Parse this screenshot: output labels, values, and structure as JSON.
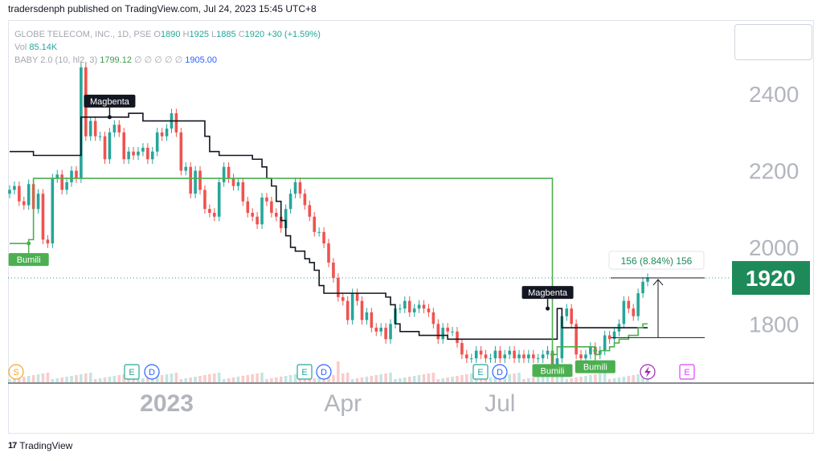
{
  "header": {
    "publisher": "tradersdenph published on TradingView.com, Jul 24, 2023 15:45 UTC+8"
  },
  "legend": {
    "symbol": "GLOBE TELECOM, INC., 1D, PSE",
    "o_label": "O",
    "o_value": "1890",
    "h_label": "H",
    "h_value": "1925",
    "l_label": "L",
    "l_value": "1885",
    "c_label": "C",
    "c_value": "1920",
    "change": "+30 (+1.59%)",
    "vol_label": "Vol",
    "vol_value": "85.14K",
    "indicator_label": "BABY 2.0 (10, hl2, 3)",
    "indicator_value1": "1799.12",
    "indicator_placeholders": "∅ ∅ ∅ ∅ ∅",
    "indicator_value2": "1905.00"
  },
  "footer": {
    "brand": "TradingView"
  },
  "colors": {
    "up": "#26a69a",
    "down": "#ef5350",
    "line": "#131722",
    "green": "#4caf50",
    "price_badge": "#1e8a5a"
  },
  "chart_data": {
    "type": "line",
    "title": "GLOBE TELECOM, INC., 1D, PSE",
    "yticks": [
      1800,
      2000,
      2200,
      2400
    ],
    "ylim": [
      1660,
      2520
    ],
    "xticks": [
      "2023",
      "Apr",
      "Jul"
    ],
    "last_price": "1920",
    "range_label": "156 (8.84%) 156",
    "grid": false,
    "series": [
      {
        "name": "close",
        "values": [
          2150,
          2160,
          2120,
          2110,
          2165,
          2100,
          2140,
          2020,
          2010,
          2180,
          2190,
          2150,
          2170,
          2200,
          2180,
          2470,
          2290,
          2330,
          2290,
          2290,
          2230,
          2300,
          2320,
          2300,
          2230,
          2250,
          2240,
          2250,
          2260,
          2230,
          2250,
          2300,
          2290,
          2310,
          2350,
          2300,
          2200,
          2210,
          2140,
          2200,
          2150,
          2100,
          2090,
          2080,
          2170,
          2210,
          2180,
          2160,
          2170,
          2120,
          2090,
          2080,
          2060,
          2130,
          2120,
          2090,
          2080,
          2050,
          2100,
          2140,
          2170,
          2140,
          2110,
          2080,
          2040,
          2040,
          2010,
          1960,
          1920,
          1870,
          1860,
          1810,
          1880,
          1860,
          1810,
          1830,
          1790,
          1780,
          1790,
          1760,
          1800,
          1840,
          1840,
          1860,
          1830,
          1840,
          1850,
          1840,
          1830,
          1800,
          1760,
          1790,
          1780,
          1780,
          1750,
          1720,
          1710,
          1710,
          1730,
          1720,
          1710,
          1710,
          1730,
          1710,
          1720,
          1730,
          1710,
          1720,
          1710,
          1720,
          1710,
          1710,
          1720,
          1730,
          1690,
          1710,
          1820,
          1840,
          1800,
          1720,
          1710,
          1720,
          1740,
          1720,
          1730,
          1770,
          1760,
          1780,
          1800,
          1860,
          1840,
          1820,
          1880,
          1910,
          1920
        ]
      },
      {
        "name": "magbenta",
        "values": [
          2250,
          2250,
          2250,
          2250,
          2250,
          2240,
          2240,
          2240,
          2240,
          2240,
          2240,
          2240,
          2240,
          2240,
          2240,
          2340,
          2340,
          2340,
          2340,
          2340,
          2340,
          2340,
          2340,
          2340,
          2340,
          2350,
          2350,
          2350,
          2330,
          2330,
          2330,
          2330,
          2330,
          2330,
          2330,
          2330,
          2330,
          2330,
          2330,
          2330,
          2330,
          2290,
          2250,
          2250,
          2240,
          2240,
          2240,
          2240,
          2240,
          2240,
          2240,
          2230,
          2230,
          2210,
          2180,
          2160,
          2120,
          2070,
          2030,
          2000,
          1990,
          1990,
          1970,
          1960,
          1940,
          1900,
          1880,
          1880,
          1880,
          1880,
          1880,
          1880,
          1880,
          1880,
          1880,
          1880,
          1880,
          1880,
          1880,
          1870,
          1850,
          1800,
          1780,
          1780,
          1780,
          1780,
          1770,
          1770,
          1770,
          1770,
          1770,
          1770,
          1760,
          1760,
          1760,
          1760,
          1760,
          1760,
          1760,
          1760,
          1760,
          1760,
          1760,
          1760,
          1760,
          1760,
          1760,
          1760,
          1760,
          1760,
          1760,
          1760,
          1760,
          1760,
          1760,
          1840,
          1790,
          1790,
          1790,
          1790,
          1790,
          1790,
          1790,
          1790,
          1790,
          1790,
          1790,
          1790,
          1790,
          1790,
          1790,
          1790,
          1790,
          1790,
          1790
        ]
      },
      {
        "name": "bumili",
        "values": [
          2010,
          2010,
          2010,
          2010,
          2020,
          2180,
          2180,
          2180,
          2180,
          2180,
          2180,
          2180,
          2180,
          2180,
          2180,
          2180,
          2180,
          2180,
          2180,
          2180,
          2180,
          2180,
          2180,
          2180,
          2180,
          2180,
          2180,
          2180,
          2180,
          2180,
          2180,
          2180,
          2180,
          2180,
          2180,
          2180,
          2180,
          2180,
          2180,
          2180,
          2180,
          2180,
          2180,
          2180,
          2180,
          2180,
          2180,
          2180,
          2180,
          2180,
          2180,
          2180,
          2180,
          2180,
          2180,
          2180,
          2180,
          2180,
          2180,
          2180,
          2180,
          2180,
          2180,
          2180,
          2180,
          2180,
          2180,
          2180,
          2180,
          2180,
          2180,
          2180,
          2180,
          2180,
          2180,
          2180,
          2180,
          2180,
          2180,
          2180,
          2180,
          2180,
          2180,
          2180,
          2180,
          2180,
          2180,
          2180,
          2180,
          2180,
          2180,
          2180,
          2180,
          2180,
          2180,
          2180,
          2180,
          2180,
          2180,
          2180,
          2180,
          2180,
          2180,
          2180,
          2180,
          2180,
          2180,
          2180,
          2180,
          2180,
          2180,
          2180,
          2180,
          2180,
          1720,
          1740,
          1740,
          1740,
          1740,
          1740,
          1740,
          1740,
          1740,
          1720,
          1730,
          1730,
          1740,
          1750,
          1760,
          1760,
          1770,
          1770,
          1790,
          1800,
          1800
        ]
      }
    ],
    "annotations": [
      {
        "label": "Bumili",
        "value": 2010
      },
      {
        "label": "Magbenta",
        "value": 2340
      },
      {
        "label": "Magbenta",
        "value": 1840
      },
      {
        "label": "Bumili",
        "value": 1720
      },
      {
        "label": "Bumili",
        "value": 1730
      }
    ],
    "event_markers": [
      "S",
      "E",
      "D",
      "E",
      "D",
      "E",
      "D",
      "E"
    ]
  }
}
